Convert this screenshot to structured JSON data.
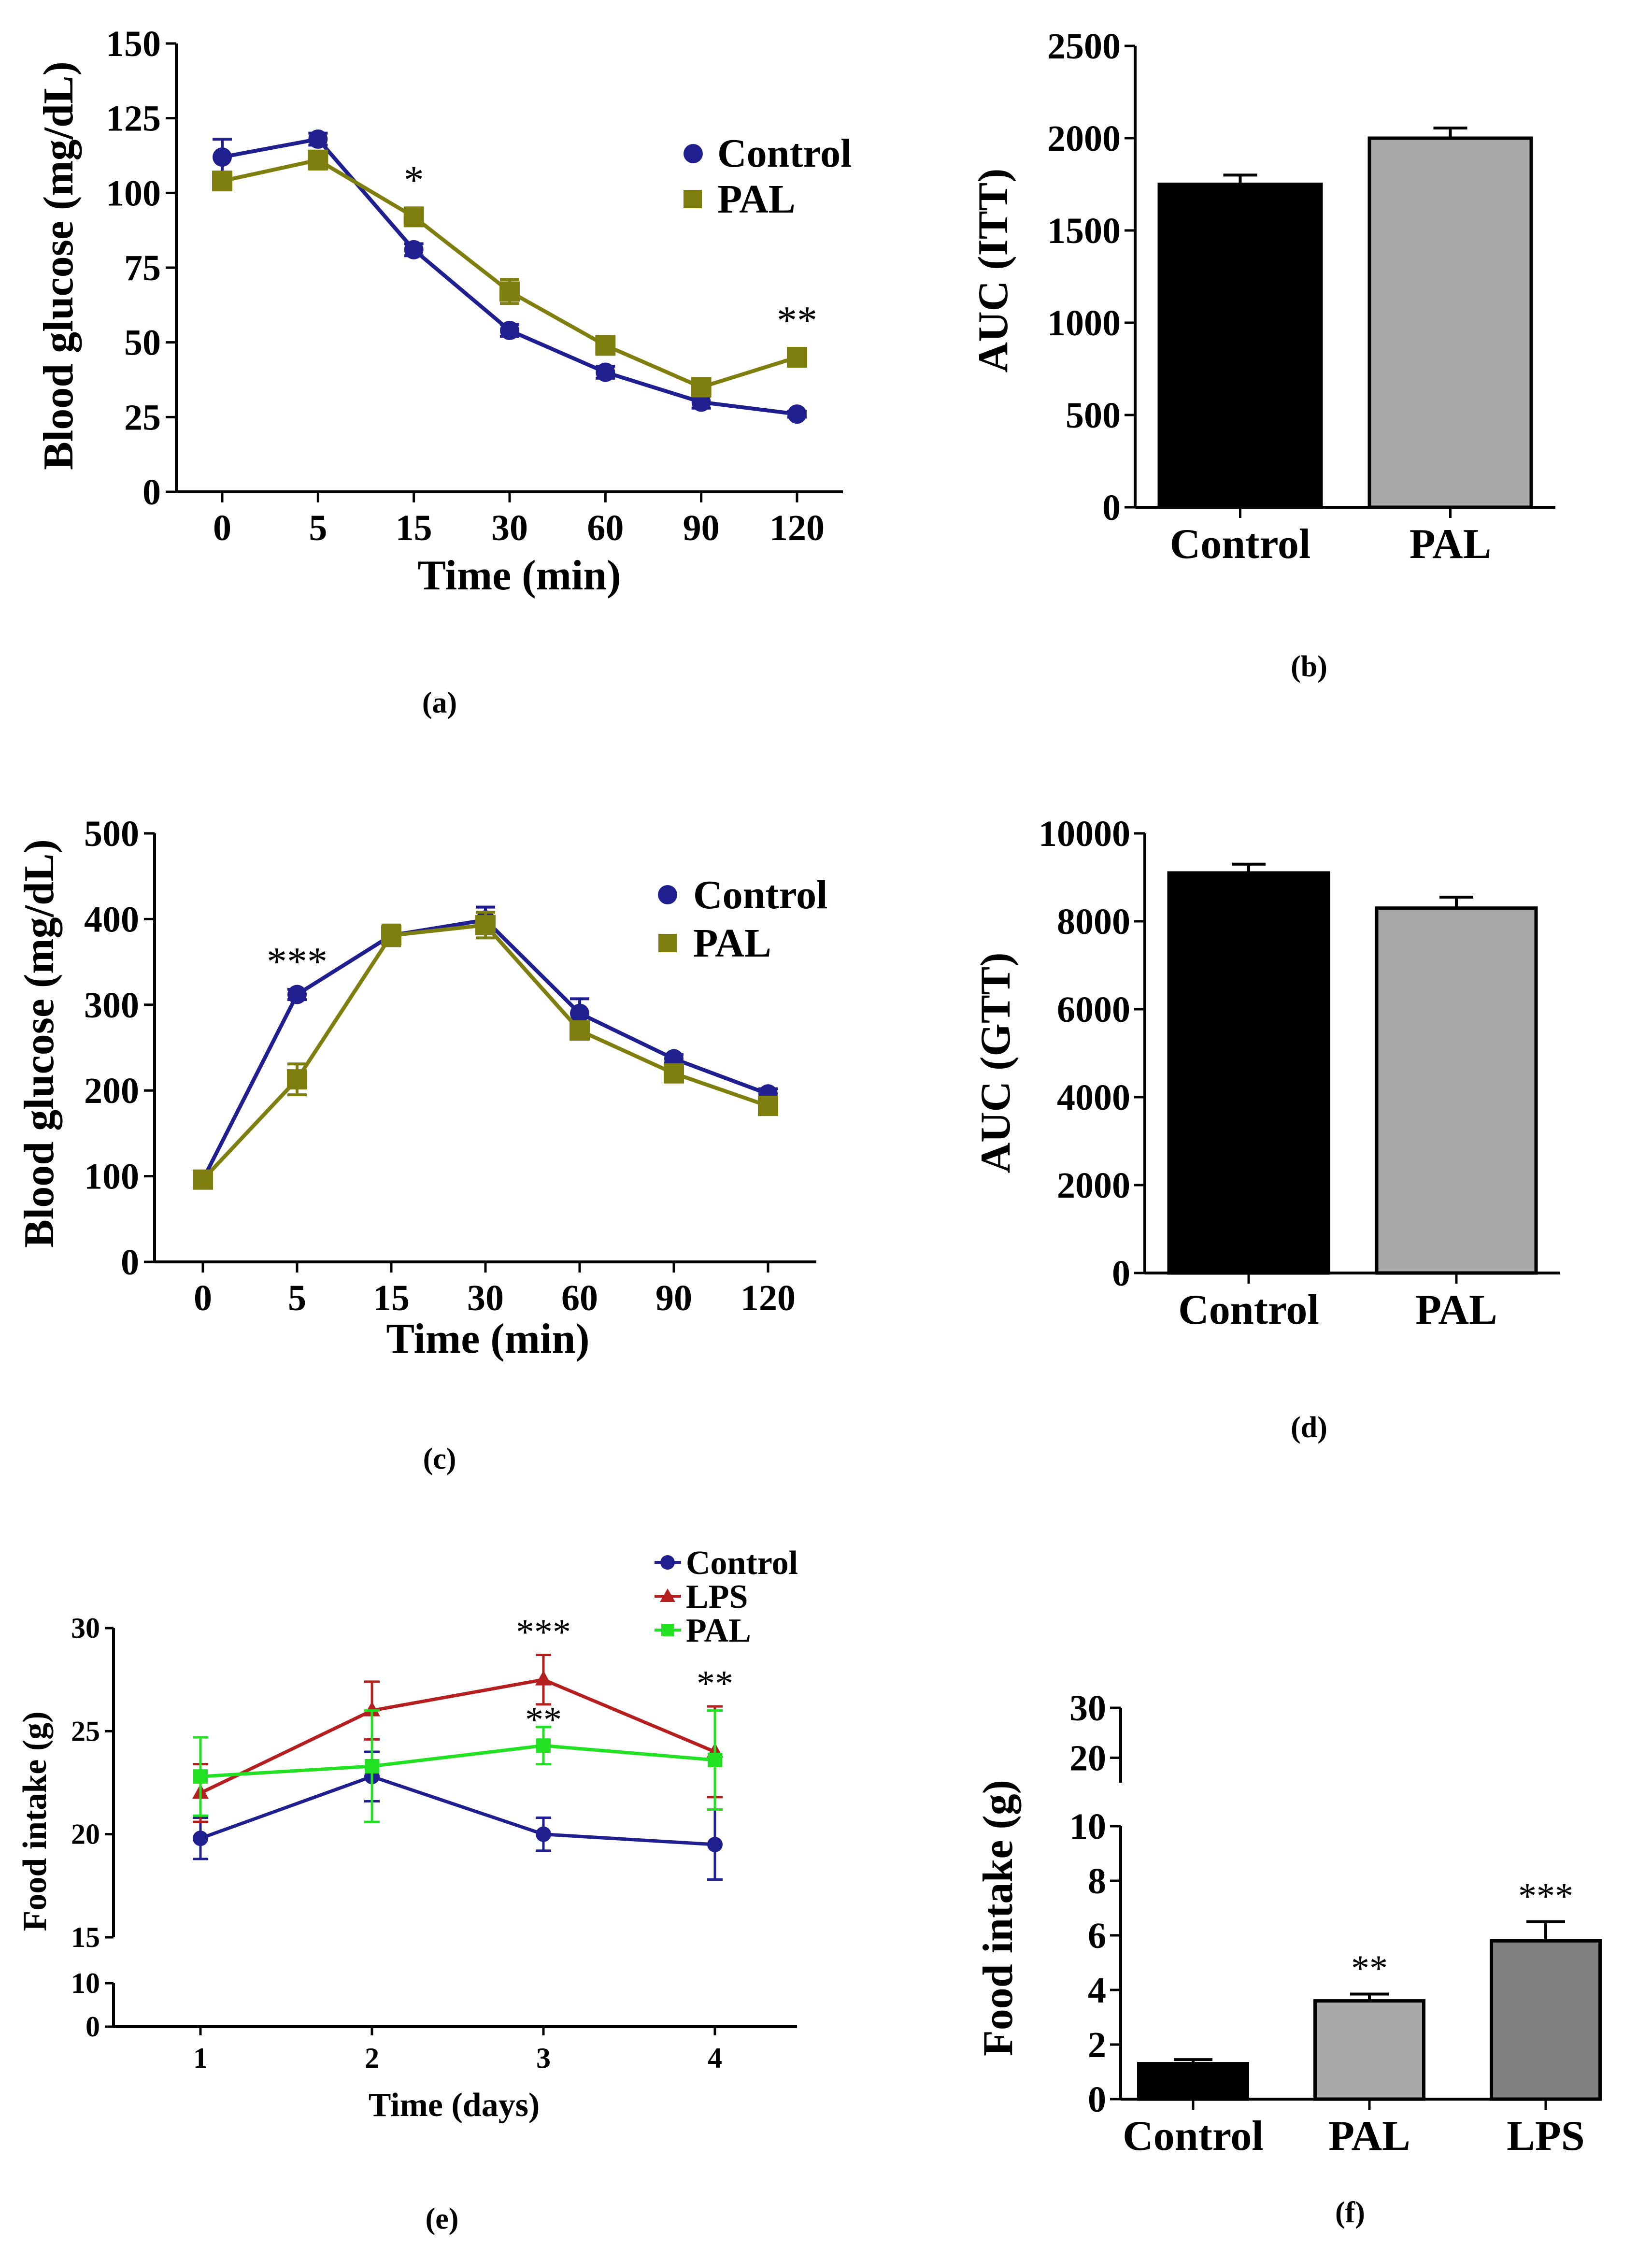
{
  "figure": {
    "panels": [
      "(a)",
      "(b)",
      "(c)",
      "(d)",
      "(e)",
      "(f)"
    ]
  },
  "chart_data": [
    {
      "id": "a",
      "type": "line",
      "panel_label": "(a)",
      "xlabel": "Time (min)",
      "ylabel": "Blood glucose (mg/dL)",
      "categories": [
        "0",
        "5",
        "15",
        "30",
        "60",
        "90",
        "120"
      ],
      "ylim": [
        0,
        150
      ],
      "yticks": [
        "0",
        "25",
        "50",
        "75",
        "100",
        "125",
        "150"
      ],
      "series": [
        {
          "name": "Control",
          "color": "#1f1f8f",
          "marker": "circle",
          "values": [
            112,
            118,
            81,
            54,
            40,
            30,
            26
          ],
          "errors": [
            6,
            2,
            2,
            2,
            2,
            2,
            1
          ]
        },
        {
          "name": "PAL",
          "color": "#7f7f10",
          "marker": "square",
          "values": [
            104,
            111,
            92,
            67,
            49,
            35,
            45
          ],
          "errors": [
            3,
            3,
            3,
            4,
            3,
            2,
            3
          ]
        }
      ],
      "annotations": [
        {
          "category": "15",
          "text": "*"
        },
        {
          "category": "120",
          "text": "**"
        }
      ]
    },
    {
      "id": "b",
      "type": "bar",
      "panel_label": "(b)",
      "xlabel": "",
      "ylabel": "AUC (ITT)",
      "categories": [
        "Control",
        "PAL"
      ],
      "values": [
        1750,
        2000
      ],
      "errors": [
        50,
        55
      ],
      "colors": [
        "#000000",
        "#a9a9a9"
      ],
      "ylim": [
        0,
        2500
      ],
      "yticks": [
        "0",
        "500",
        "1000",
        "1500",
        "2000",
        "2500"
      ]
    },
    {
      "id": "c",
      "type": "line",
      "panel_label": "(c)",
      "xlabel": "Time (min)",
      "ylabel": "Blood glucose (mg/dL)",
      "categories": [
        "0",
        "5",
        "15",
        "30",
        "60",
        "90",
        "120"
      ],
      "ylim": [
        0,
        500
      ],
      "yticks": [
        "0",
        "100",
        "200",
        "300",
        "400",
        "500"
      ],
      "series": [
        {
          "name": "Control",
          "color": "#1f1f8f",
          "marker": "circle",
          "values": [
            96,
            312,
            381,
            399,
            290,
            237,
            196
          ],
          "errors": [
            4,
            6,
            12,
            15,
            17,
            5,
            6
          ]
        },
        {
          "name": "PAL",
          "color": "#7f7f10",
          "marker": "square",
          "values": [
            96,
            213,
            381,
            393,
            270,
            220,
            182
          ],
          "errors": [
            4,
            18,
            12,
            15,
            10,
            6,
            5
          ]
        }
      ],
      "annotations": [
        {
          "category": "5",
          "text": "***"
        }
      ]
    },
    {
      "id": "d",
      "type": "bar",
      "panel_label": "(d)",
      "xlabel": "",
      "ylabel": "AUC (GTT)",
      "categories": [
        "Control",
        "PAL"
      ],
      "values": [
        9100,
        8300
      ],
      "errors": [
        200,
        250
      ],
      "colors": [
        "#000000",
        "#a9a9a9"
      ],
      "ylim": [
        0,
        10000
      ],
      "yticks": [
        "0",
        "2000",
        "4000",
        "6000",
        "8000",
        "10000"
      ]
    },
    {
      "id": "e",
      "type": "line",
      "panel_label": "(e)",
      "xlabel": "Time (days)",
      "ylabel": "Food intake (g)",
      "categories": [
        "1",
        "2",
        "3",
        "4"
      ],
      "ylim": [
        0,
        30
      ],
      "axis_break": [
        10,
        15
      ],
      "yticks_lower": [
        "0",
        "10"
      ],
      "yticks_upper": [
        "15",
        "20",
        "25",
        "30"
      ],
      "series": [
        {
          "name": "Control",
          "color": "#1f1f8f",
          "marker": "circle",
          "values": [
            19.8,
            22.8,
            20.0,
            19.5
          ],
          "errors": [
            1.0,
            1.2,
            0.8,
            1.7
          ]
        },
        {
          "name": "LPS",
          "color": "#b51f1f",
          "marker": "triangle",
          "values": [
            22.0,
            26.0,
            27.5,
            24.0
          ],
          "errors": [
            1.4,
            1.4,
            1.2,
            2.2
          ]
        },
        {
          "name": "PAL",
          "color": "#22e022",
          "marker": "square",
          "values": [
            22.8,
            23.3,
            24.3,
            23.6
          ],
          "errors": [
            1.9,
            2.7,
            0.9,
            2.4
          ]
        }
      ],
      "annotations": [
        {
          "category": "3",
          "text": "***",
          "series": "LPS"
        },
        {
          "category": "3",
          "text": "**",
          "series": "PAL"
        },
        {
          "category": "4",
          "text": "**",
          "series": "LPS"
        }
      ]
    },
    {
      "id": "f",
      "type": "bar",
      "panel_label": "(f)",
      "xlabel": "",
      "ylabel": "Food intake (g)",
      "categories": [
        "Control",
        "PAL",
        "LPS"
      ],
      "values": [
        1.3,
        3.6,
        5.8
      ],
      "errors": [
        0.15,
        0.25,
        0.7
      ],
      "colors": [
        "#000000",
        "#a9a9a9",
        "#808080"
      ],
      "ylim": [
        0,
        30
      ],
      "axis_break": [
        10,
        15
      ],
      "yticks_lower": [
        "0",
        "2",
        "4",
        "6",
        "8",
        "10"
      ],
      "yticks_upper": [
        "20",
        "30"
      ],
      "annotations": [
        {
          "category": "PAL",
          "text": "**"
        },
        {
          "category": "LPS",
          "text": "***"
        }
      ]
    }
  ]
}
